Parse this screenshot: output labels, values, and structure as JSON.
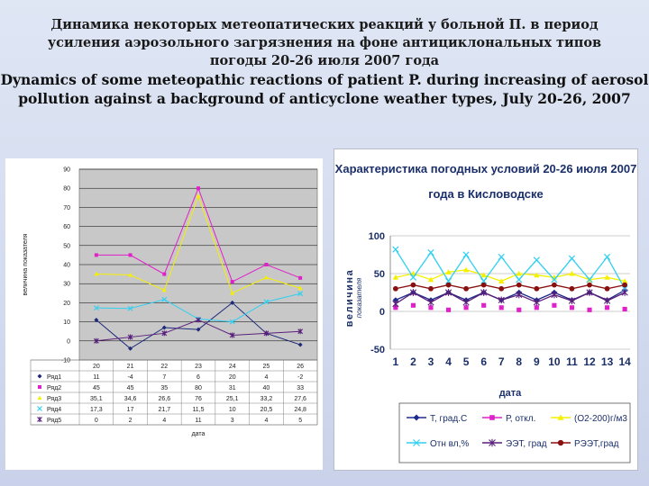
{
  "title_ru": [
    "Динамика некоторых метеопатических реакций у больной П. в период",
    "усиления аэрозольного загрязнения на фоне антициклональных типов",
    "погоды 20-26 июля 2007 года"
  ],
  "title_en": [
    "Dynamics of some meteopathic reactions of patient P. during increasing of aerosol",
    "pollution against a background of anticyclone weather types, July 20-26, 2007"
  ],
  "chart_data": [
    {
      "type": "line",
      "title": "",
      "xlabel": "дата",
      "ylabel": "величина показателя",
      "ylim": [
        -10,
        90
      ],
      "yticks": [
        -10,
        0,
        10,
        20,
        30,
        40,
        50,
        60,
        70,
        80,
        90
      ],
      "categories": [
        "20",
        "21",
        "22",
        "23",
        "24",
        "25",
        "26"
      ],
      "grid": true,
      "legend": "table-bottom",
      "series": [
        {
          "name": "Ряд1",
          "values": [
            11,
            -4,
            7,
            6,
            20,
            4,
            -2
          ],
          "color": "#1f2a7a",
          "marker": "diamond"
        },
        {
          "name": "Ряд2",
          "values": [
            45,
            45,
            35,
            80,
            31,
            40,
            33
          ],
          "color": "#e020c8",
          "marker": "square"
        },
        {
          "name": "Ряд3",
          "values": [
            35.1,
            34.6,
            26.6,
            76,
            25.1,
            33.2,
            27.6
          ],
          "color": "#f5f000",
          "marker": "triangle"
        },
        {
          "name": "Ряд4",
          "values": [
            17.3,
            17,
            21.7,
            11.5,
            10,
            20.5,
            24.8
          ],
          "color": "#30d0f0",
          "marker": "x"
        },
        {
          "name": "Ряд5",
          "values": [
            0,
            2,
            4,
            11,
            3,
            4,
            5
          ],
          "color": "#5a1f7a",
          "marker": "star"
        }
      ],
      "table": [
        [
          "11",
          "-4",
          "7",
          "6",
          "20",
          "4",
          "-2"
        ],
        [
          "45",
          "45",
          "35",
          "80",
          "31",
          "40",
          "33"
        ],
        [
          "35,1",
          "34,6",
          "26,6",
          "76",
          "25,1",
          "33,2",
          "27,6"
        ],
        [
          "17,3",
          "17",
          "21,7",
          "11,5",
          "10",
          "20,5",
          "24,8"
        ],
        [
          "0",
          "2",
          "4",
          "11",
          "3",
          "4",
          "5"
        ]
      ]
    },
    {
      "type": "line",
      "title": "Характеристика погодных условий 20-26 июля 2007 года в Кисловодске",
      "title_lines": [
        "Характеристика погодных условий 20-26 июля 2007",
        "года в Кисловодске"
      ],
      "xlabel": "дата",
      "ylabel_lines": [
        "величина",
        "показателя"
      ],
      "ylim": [
        -50,
        100
      ],
      "yticks": [
        -50,
        0,
        50,
        100
      ],
      "categories": [
        "1",
        "2",
        "3",
        "4",
        "5",
        "6",
        "7",
        "8",
        "9",
        "10",
        "11",
        "12",
        "13",
        "14"
      ],
      "grid": true,
      "legend": "bottom",
      "series": [
        {
          "name": "Т, град.С",
          "values": [
            15,
            25,
            15,
            25,
            15,
            25,
            15,
            25,
            15,
            25,
            15,
            25,
            15,
            28
          ],
          "color": "#1f2a8a",
          "marker": "diamond"
        },
        {
          "name": "Р, откл.",
          "values": [
            5,
            8,
            5,
            2,
            5,
            8,
            5,
            2,
            5,
            8,
            5,
            2,
            5,
            3
          ],
          "color": "#e020c8",
          "marker": "square"
        },
        {
          "name": "(О2-200)г/м3",
          "values": [
            45,
            50,
            42,
            52,
            55,
            48,
            40,
            50,
            48,
            45,
            50,
            42,
            45,
            40
          ],
          "color": "#f5f000",
          "marker": "triangle"
        },
        {
          "name": "Отн вл,%",
          "values": [
            82,
            45,
            78,
            40,
            75,
            40,
            72,
            42,
            68,
            42,
            70,
            42,
            72,
            30
          ],
          "color": "#30d0f0",
          "marker": "x"
        },
        {
          "name": "ЭЭТ, град",
          "values": [
            10,
            25,
            12,
            25,
            12,
            25,
            15,
            22,
            12,
            22,
            14,
            25,
            14,
            25
          ],
          "color": "#5a1f7a",
          "marker": "star"
        },
        {
          "name": "РЭЭТ,град",
          "values": [
            30,
            35,
            30,
            35,
            30,
            35,
            30,
            35,
            30,
            35,
            30,
            35,
            30,
            35
          ],
          "color": "#8a1010",
          "marker": "circle"
        }
      ]
    }
  ]
}
